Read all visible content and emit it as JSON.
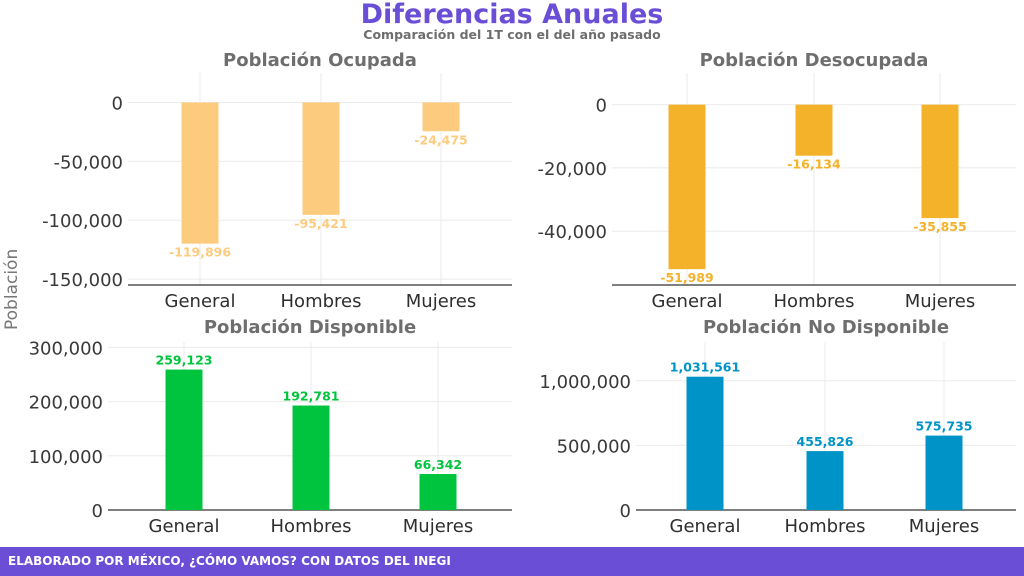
{
  "title": "Diferencias Anuales",
  "subtitle": "Comparación del 1T con el del año pasado",
  "ylabel": "Población",
  "footer": "ELABORADO POR MÉXICO, ¿CÓMO VAMOS? CON DATOS DEL INEGI",
  "chart_data": [
    {
      "type": "bar",
      "title": "Población Ocupada",
      "categories": [
        "General",
        "Hombres",
        "Mujeres"
      ],
      "values": [
        -119896,
        -95421,
        -24475
      ],
      "value_labels": [
        "-119,896",
        "-95,421",
        "-24,475"
      ],
      "color": "#fdcb7e",
      "ylim": [
        -155000,
        25000
      ],
      "yticks": [
        0,
        -50000,
        -100000,
        -150000
      ],
      "ytick_labels": [
        "0",
        "-50,000",
        "-100,000",
        "-150,000"
      ],
      "grid": true
    },
    {
      "type": "bar",
      "title": "Población Desocupada",
      "categories": [
        "General",
        "Hombres",
        "Mujeres"
      ],
      "values": [
        -51989,
        -16134,
        -35855
      ],
      "value_labels": [
        "-51,989",
        "-16,134",
        "-35,855"
      ],
      "color": "#f4b12a",
      "ylim": [
        -57000,
        10000
      ],
      "yticks": [
        0,
        -20000,
        -40000
      ],
      "ytick_labels": [
        "0",
        "-20,000",
        "-40,000"
      ],
      "grid": true
    },
    {
      "type": "bar",
      "title": "Población Disponible",
      "categories": [
        "General",
        "Hombres",
        "Mujeres"
      ],
      "values": [
        259123,
        192781,
        66342
      ],
      "value_labels": [
        "259,123",
        "192,781",
        "66,342"
      ],
      "color": "#00c43d",
      "ylim": [
        0,
        310000
      ],
      "yticks": [
        0,
        100000,
        200000,
        300000
      ],
      "ytick_labels": [
        "0",
        "100,000",
        "200,000",
        "300,000"
      ],
      "grid": true
    },
    {
      "type": "bar",
      "title": "Población No Disponible",
      "categories": [
        "General",
        "Hombres",
        "Mujeres"
      ],
      "values": [
        1031561,
        455826,
        575735
      ],
      "value_labels": [
        "1,031,561",
        "455,826",
        "575,735"
      ],
      "color": "#0093c8",
      "ylim": [
        0,
        1300000
      ],
      "yticks": [
        0,
        500000,
        1000000
      ],
      "ytick_labels": [
        "0",
        "500,000",
        "1,000,000"
      ],
      "grid": true
    }
  ]
}
